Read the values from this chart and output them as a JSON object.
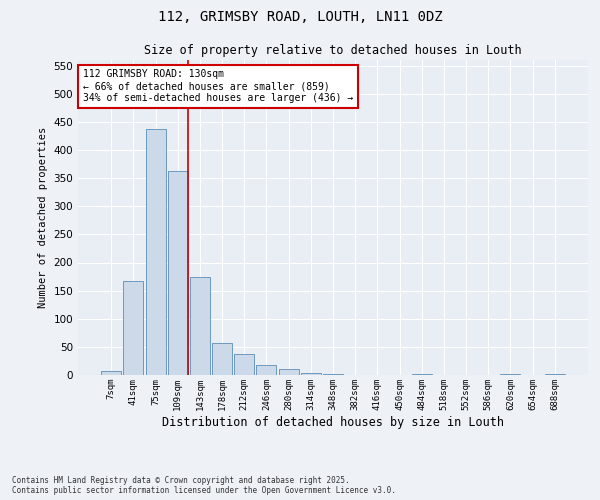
{
  "title1": "112, GRIMSBY ROAD, LOUTH, LN11 0DZ",
  "title2": "Size of property relative to detached houses in Louth",
  "xlabel": "Distribution of detached houses by size in Louth",
  "ylabel": "Number of detached properties",
  "categories": [
    "7sqm",
    "41sqm",
    "75sqm",
    "109sqm",
    "143sqm",
    "178sqm",
    "212sqm",
    "246sqm",
    "280sqm",
    "314sqm",
    "348sqm",
    "382sqm",
    "416sqm",
    "450sqm",
    "484sqm",
    "518sqm",
    "552sqm",
    "586sqm",
    "620sqm",
    "654sqm",
    "688sqm"
  ],
  "values": [
    7,
    168,
    438,
    362,
    175,
    57,
    38,
    18,
    11,
    4,
    1,
    0,
    0,
    0,
    2,
    0,
    0,
    0,
    1,
    0,
    2
  ],
  "bar_color": "#ccd9e8",
  "bar_edge_color": "#5b8db8",
  "highlight_index": 3,
  "highlight_line_color": "#cc0000",
  "annotation_text": "112 GRIMSBY ROAD: 130sqm\n← 66% of detached houses are smaller (859)\n34% of semi-detached houses are larger (436) →",
  "annotation_box_color": "#ffffff",
  "annotation_box_edge": "#cc0000",
  "ylim": [
    0,
    560
  ],
  "yticks": [
    0,
    50,
    100,
    150,
    200,
    250,
    300,
    350,
    400,
    450,
    500,
    550
  ],
  "bg_color": "#e8eef4",
  "grid_color": "#ffffff",
  "fig_bg_color": "#eef2f7",
  "footer1": "Contains HM Land Registry data © Crown copyright and database right 2025.",
  "footer2": "Contains public sector information licensed under the Open Government Licence v3.0."
}
